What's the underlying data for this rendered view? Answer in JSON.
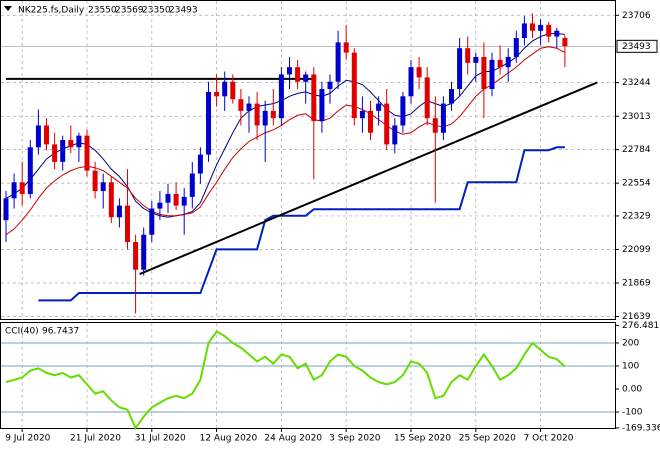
{
  "chart_data": {
    "type": "candlestick",
    "symbol": "NK225.fs,Daily",
    "ohlc": [
      23550,
      23569,
      23350,
      23493
    ],
    "current_price": 23493,
    "categories": [
      null,
      null,
      "9 Jul 2020",
      null,
      null,
      null,
      null,
      null,
      null,
      null,
      "21 Jul 2020",
      null,
      null,
      null,
      null,
      null,
      null,
      null,
      "31 Jul 2020",
      null,
      null,
      null,
      null,
      null,
      null,
      null,
      "12 Aug 2020",
      null,
      null,
      null,
      null,
      null,
      null,
      null,
      "24 Aug 2020",
      null,
      null,
      null,
      null,
      null,
      null,
      null,
      "3 Sep 2020",
      null,
      null,
      null,
      null,
      null,
      null,
      null,
      "15 Sep 2020",
      null,
      null,
      null,
      null,
      null,
      null,
      null,
      "25 Sep 2020",
      null,
      null,
      null,
      null,
      null,
      null,
      null,
      "7 Oct 2020",
      null,
      null,
      null
    ],
    "open": [
      22300,
      22450,
      22560,
      22480,
      22800,
      22950,
      22820,
      22700,
      22850,
      22800,
      22880,
      22640,
      22500,
      22560,
      22320,
      22400,
      22150,
      21960,
      22200,
      22380,
      22420,
      22480,
      22400,
      22460,
      22620,
      22750,
      23180,
      23150,
      23250,
      23130,
      23050,
      23100,
      22950,
      23050,
      23000,
      23300,
      23350,
      23250,
      23300,
      22980,
      23200,
      23250,
      23520,
      23450,
      23000,
      23050,
      23050,
      23100,
      22820,
      22950,
      23150,
      23350,
      23280,
      23000,
      22900,
      23100,
      23200,
      23480,
      23380,
      23420,
      23200,
      23400,
      23350,
      23420,
      23550,
      23650,
      23600,
      23640,
      23560,
      23550
    ],
    "high": [
      22500,
      22620,
      22700,
      22850,
      23060,
      23000,
      22900,
      22880,
      22950,
      22900,
      22920,
      22700,
      22620,
      22600,
      22450,
      22650,
      22200,
      22250,
      22430,
      22500,
      22550,
      22560,
      22520,
      22700,
      22800,
      23250,
      23300,
      23320,
      23300,
      23200,
      23150,
      23180,
      23120,
      23200,
      23350,
      23420,
      23400,
      23320,
      23350,
      23250,
      23300,
      23600,
      23640,
      23480,
      23150,
      23120,
      23150,
      23200,
      23000,
      23180,
      23400,
      23420,
      23350,
      23150,
      23150,
      23250,
      23550,
      23560,
      23450,
      23520,
      23450,
      23500,
      23480,
      23600,
      23700,
      23720,
      23680,
      23660,
      23620,
      23569
    ],
    "low": [
      22150,
      22380,
      22400,
      22450,
      22750,
      22780,
      22650,
      22640,
      22760,
      22700,
      22600,
      22450,
      22380,
      22280,
      22250,
      22100,
      21660,
      21920,
      22150,
      22300,
      22350,
      22370,
      22200,
      22380,
      22550,
      22700,
      23080,
      23050,
      23100,
      22950,
      22900,
      22850,
      22700,
      22950,
      22950,
      23200,
      23200,
      23100,
      22580,
      22900,
      23100,
      23200,
      23400,
      22950,
      22900,
      22850,
      22950,
      22780,
      22760,
      22900,
      23100,
      23200,
      22950,
      22420,
      22850,
      23050,
      23150,
      23300,
      23250,
      23000,
      23150,
      23300,
      23250,
      23380,
      23500,
      23550,
      23500,
      23520,
      23480,
      23350
    ],
    "close": [
      22450,
      22560,
      22480,
      22800,
      22950,
      22820,
      22700,
      22850,
      22800,
      22880,
      22640,
      22500,
      22560,
      22320,
      22400,
      22150,
      21960,
      22200,
      22380,
      22420,
      22480,
      22400,
      22460,
      22620,
      22750,
      23180,
      23150,
      23250,
      23130,
      23050,
      23100,
      22950,
      23050,
      23000,
      23300,
      23350,
      23250,
      23300,
      22980,
      23200,
      23250,
      23520,
      23450,
      23000,
      23050,
      22900,
      23100,
      22820,
      22950,
      23150,
      23350,
      23280,
      23000,
      22900,
      23100,
      23200,
      23480,
      23380,
      23420,
      23200,
      23400,
      23350,
      23420,
      23550,
      23650,
      23600,
      23640,
      23560,
      23600,
      23493
    ],
    "up_color": "#0000cd",
    "down_color": "#e00000",
    "series": [
      {
        "color": "#00008b",
        "values": [
          22450,
          22480,
          22520,
          22580,
          22650,
          22720,
          22760,
          22790,
          22810,
          22830,
          22820,
          22780,
          22720,
          22650,
          22600,
          22530,
          22430,
          22380,
          22350,
          22330,
          22320,
          22330,
          22340,
          22360,
          22420,
          22550,
          22680,
          22790,
          22900,
          23000,
          23050,
          23080,
          23090,
          23100,
          23120,
          23150,
          23170,
          23180,
          23160,
          23150,
          23170,
          23220,
          23260,
          23250,
          23230,
          23180,
          23120,
          23060,
          23020,
          23010,
          23030,
          23080,
          23120,
          23100,
          23080,
          23100,
          23150,
          23220,
          23290,
          23320,
          23320,
          23350,
          23380,
          23420,
          23480,
          23530,
          23560,
          23580,
          23580,
          23575
        ]
      },
      {
        "color": "#cc0000",
        "values": [
          22200,
          22240,
          22300,
          22370,
          22450,
          22520,
          22570,
          22610,
          22640,
          22660,
          22670,
          22660,
          22640,
          22600,
          22560,
          22520,
          22450,
          22400,
          22360,
          22340,
          22330,
          22330,
          22340,
          22350,
          22390,
          22480,
          22560,
          22650,
          22730,
          22790,
          22840,
          22870,
          22900,
          22920,
          22950,
          22990,
          23020,
          23030,
          22990,
          22980,
          23000,
          23050,
          23090,
          23080,
          23060,
          23030,
          22990,
          22950,
          22910,
          22890,
          22900,
          22940,
          22970,
          22950,
          22940,
          22960,
          23010,
          23080,
          23150,
          23200,
          23230,
          23270,
          23310,
          23350,
          23400,
          23440,
          23480,
          23490,
          23480,
          23450
        ]
      },
      {
        "color": "#0020c0",
        "values": [
          null,
          null,
          null,
          null,
          21750,
          21750,
          21750,
          21750,
          21750,
          21800,
          21800,
          21800,
          21800,
          21800,
          21800,
          21800,
          21800,
          21800,
          21800,
          21800,
          21800,
          21800,
          21800,
          21800,
          21800,
          21950,
          22100,
          22100,
          22100,
          22100,
          22100,
          22100,
          22300,
          22330,
          22330,
          22330,
          22330,
          22330,
          22375,
          22375,
          22375,
          22375,
          22375,
          22375,
          22375,
          22375,
          22375,
          22375,
          22375,
          22375,
          22375,
          22375,
          22375,
          22375,
          22375,
          22375,
          22375,
          22560,
          22560,
          22560,
          22560,
          22560,
          22560,
          22560,
          22780,
          22780,
          22780,
          22780,
          22800,
          22800
        ]
      }
    ],
    "drawings": [
      {
        "x": [
          0,
          38
        ],
        "y": [
          23270,
          23270
        ]
      },
      {
        "x": [
          16.5,
          73
        ],
        "y": [
          21930,
          23245
        ]
      }
    ],
    "ylim": [
      21615,
      23804
    ],
    "yticks": [
      23706,
      23244,
      23013,
      22784,
      22554,
      22329,
      22099,
      21869,
      21639
    ],
    "cci": {
      "label": "CCI(40)",
      "current": 96.7437,
      "color": "#66dd00",
      "values": [
        30,
        40,
        50,
        80,
        90,
        70,
        60,
        70,
        50,
        60,
        20,
        -20,
        -10,
        -50,
        -80,
        -90,
        -170,
        -120,
        -80,
        -60,
        -40,
        -30,
        -40,
        -20,
        40,
        200,
        250,
        230,
        200,
        180,
        150,
        120,
        140,
        110,
        150,
        140,
        90,
        110,
        40,
        60,
        120,
        150,
        140,
        100,
        80,
        50,
        30,
        20,
        30,
        60,
        120,
        110,
        70,
        -40,
        -30,
        30,
        60,
        40,
        100,
        150,
        100,
        40,
        60,
        90,
        150,
        200,
        170,
        140,
        130,
        96.7437
      ],
      "levels": [
        200,
        100,
        -100
      ],
      "ylim": [
        -174,
        287
      ],
      "yticks": [
        276.4817,
        200,
        100,
        {
          "value": 0,
          "label": "0.00"
        },
        -100,
        -169.336
      ]
    }
  }
}
